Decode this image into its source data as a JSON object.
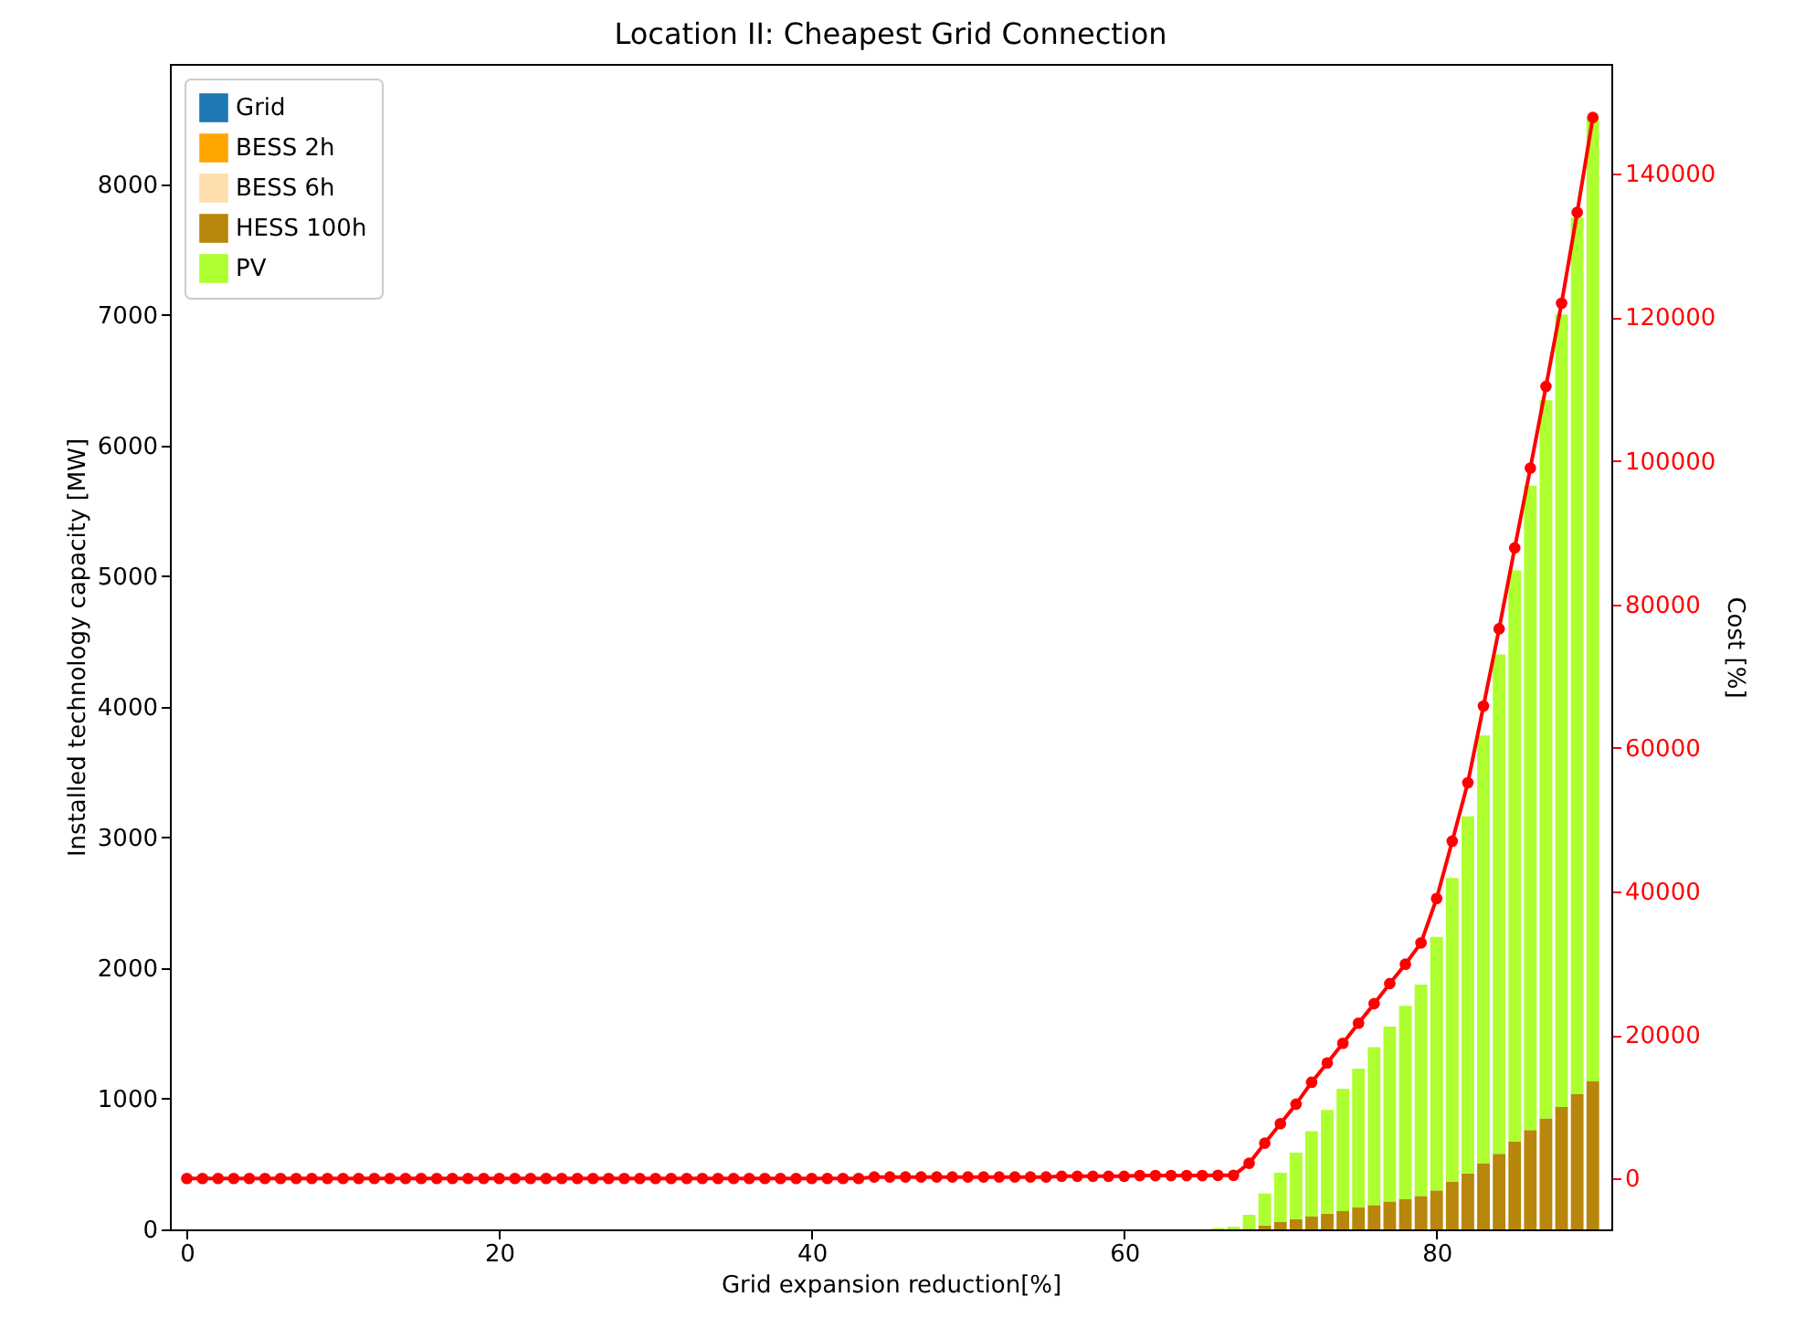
{
  "chart_data": {
    "type": "bar",
    "title": "Location II: Cheapest Grid Connection",
    "xlabel": "Grid expansion reduction[%]",
    "ylabel": "Installed technology capacity [MW]",
    "y2label": "Cost [%]",
    "stacked": true,
    "legend": "top left",
    "xlim": [
      -0.5,
      90.6
    ],
    "xticks": [
      0,
      20,
      40,
      60,
      80
    ],
    "ylim": [
      0,
      8920
    ],
    "yticks": [
      0,
      1000,
      2000,
      3000,
      4000,
      5000,
      6000,
      7000,
      8000
    ],
    "y2lim": [
      -7100,
      155300
    ],
    "y2ticks": [
      0,
      20000,
      40000,
      60000,
      80000,
      100000,
      120000,
      140000
    ],
    "x": [
      0,
      1,
      2,
      3,
      4,
      5,
      6,
      7,
      8,
      9,
      10,
      11,
      12,
      13,
      14,
      15,
      16,
      17,
      18,
      19,
      20,
      21,
      22,
      23,
      24,
      25,
      26,
      27,
      28,
      29,
      30,
      31,
      32,
      33,
      34,
      35,
      36,
      37,
      38,
      39,
      40,
      41,
      42,
      43,
      44,
      45,
      46,
      47,
      48,
      49,
      50,
      51,
      52,
      53,
      54,
      55,
      56,
      57,
      58,
      59,
      60,
      61,
      62,
      63,
      64,
      65,
      66,
      67,
      68,
      69,
      70,
      71,
      72,
      73,
      74,
      75,
      76,
      77,
      78,
      79,
      80,
      81,
      82,
      83,
      84,
      85,
      86,
      87,
      88,
      89,
      90
    ],
    "series": [
      {
        "name": "Grid",
        "color": "#1f77b4",
        "values": [
          0,
          0,
          0,
          0,
          0,
          0,
          0,
          0,
          0,
          0,
          0,
          0,
          0,
          0,
          0,
          0,
          0,
          0,
          0,
          0,
          0,
          0,
          0,
          0,
          0,
          0,
          0,
          0,
          0,
          0,
          0,
          0,
          0,
          0,
          0,
          0,
          0,
          0,
          0,
          0,
          0,
          0,
          0,
          0,
          0,
          0,
          0,
          0,
          0,
          0,
          0,
          0,
          0,
          0,
          0,
          0,
          0,
          0,
          0,
          0,
          0,
          0,
          0,
          0,
          0,
          0,
          0,
          0,
          0,
          0,
          0,
          0,
          0,
          0,
          0,
          0,
          0,
          0,
          0,
          0,
          0,
          0,
          0,
          0,
          0,
          0,
          0,
          0,
          0,
          0,
          0
        ]
      },
      {
        "name": "BESS 2h",
        "color": "#ffa500",
        "values": [
          0,
          0,
          0,
          0,
          0,
          0,
          0,
          0,
          0,
          0,
          0,
          0,
          0,
          0,
          0,
          0,
          0,
          0,
          0,
          0,
          0,
          0,
          0,
          0,
          0,
          0,
          0,
          0,
          0,
          0,
          0,
          0,
          0,
          0,
          0,
          0,
          0,
          0,
          0,
          0,
          0,
          0,
          0,
          0,
          0,
          0,
          0,
          0,
          0,
          0,
          0,
          0,
          0,
          0,
          0,
          0,
          0,
          0,
          0,
          0,
          0,
          0,
          0,
          0,
          0,
          0,
          0,
          0,
          0,
          0,
          0,
          0,
          0,
          0,
          0,
          0,
          0,
          0,
          0,
          0,
          0,
          0,
          0,
          0,
          0,
          0,
          0,
          0,
          0,
          0,
          0
        ]
      },
      {
        "name": "BESS 6h",
        "color": "#ffdead",
        "values": [
          0,
          0,
          0,
          0,
          0,
          0,
          0,
          0,
          0,
          0,
          0,
          0,
          0,
          0,
          0,
          0,
          0,
          0,
          0,
          0,
          0,
          0,
          0,
          0,
          0,
          0,
          0,
          0,
          0,
          0,
          0,
          0,
          0,
          0,
          0,
          0,
          0,
          0,
          0,
          0,
          0,
          0,
          0,
          0,
          0,
          0,
          0,
          0,
          0,
          0,
          0,
          0,
          0,
          0,
          0,
          0,
          0,
          0,
          0,
          0,
          0,
          0,
          0,
          0,
          0,
          0,
          0,
          0,
          0,
          0,
          0,
          0,
          0,
          0,
          0,
          0,
          0,
          0,
          0,
          0,
          0,
          0,
          0,
          0,
          0,
          0,
          0,
          0,
          0,
          0,
          0
        ]
      },
      {
        "name": "HESS 100h",
        "color": "#b8860b",
        "values": [
          0,
          0,
          0,
          0,
          0,
          0,
          0,
          0,
          0,
          0,
          0,
          0,
          0,
          0,
          0,
          0,
          0,
          0,
          0,
          0,
          0,
          0,
          0,
          0,
          0,
          0,
          0,
          0,
          0,
          0,
          0,
          0,
          0,
          0,
          0,
          0,
          0,
          0,
          0,
          0,
          0,
          0,
          0,
          0,
          0,
          0,
          0,
          0,
          0,
          0,
          0,
          0,
          0,
          0,
          0,
          0,
          0,
          0,
          0,
          0,
          0,
          0,
          0,
          0,
          0,
          0,
          0,
          0,
          5,
          28,
          56,
          79,
          98,
          121,
          140,
          168,
          186,
          214,
          233,
          256,
          298,
          364,
          429,
          503,
          578,
          671,
          760,
          849,
          937,
          1035,
          1133
        ]
      },
      {
        "name": "PV",
        "color": "#adff2f",
        "values": [
          0,
          0,
          0,
          0,
          0,
          0,
          0,
          0,
          0,
          0,
          0,
          0,
          0,
          0,
          0,
          0,
          0,
          0,
          0,
          0,
          0,
          0,
          0,
          0,
          0,
          0,
          0,
          0,
          0,
          0,
          0,
          0,
          0,
          0,
          0,
          0,
          0,
          0,
          0,
          0,
          0,
          0,
          0,
          0,
          0,
          0,
          0,
          0,
          0,
          0,
          0,
          0,
          0,
          0,
          0,
          0,
          0,
          0,
          0,
          0,
          0,
          0,
          0,
          0,
          0,
          0,
          10,
          20,
          107,
          247,
          378,
          508,
          653,
          793,
          937,
          1063,
          1208,
          1338,
          1478,
          1618,
          1940,
          2326,
          2732,
          3278,
          3823,
          4373,
          4932,
          5496,
          6066,
          6709,
          7370
        ]
      },
      {
        "type": "line",
        "axis": "y2",
        "color": "#ff0000",
        "marker": "circle",
        "values": [
          0,
          0,
          0,
          0,
          0,
          0,
          0,
          0,
          0,
          0,
          0,
          0,
          0,
          0,
          0,
          0,
          0,
          0,
          0,
          0,
          0,
          0,
          0,
          0,
          0,
          0,
          0,
          0,
          0,
          0,
          0,
          0,
          0,
          0,
          0,
          0,
          0,
          0,
          0,
          0,
          0,
          0,
          0,
          0,
          200,
          200,
          200,
          200,
          200,
          200,
          200,
          200,
          200,
          200,
          200,
          200,
          300,
          300,
          300,
          300,
          300,
          400,
          400,
          400,
          400,
          400,
          430,
          430,
          2110,
          4910,
          7630,
          10350,
          13400,
          16100,
          18830,
          21630,
          24350,
          27150,
          29850,
          32820,
          39000,
          47000,
          55140,
          65830,
          76590,
          87860,
          98980,
          110360,
          121960,
          134610,
          147840
        ]
      }
    ]
  }
}
